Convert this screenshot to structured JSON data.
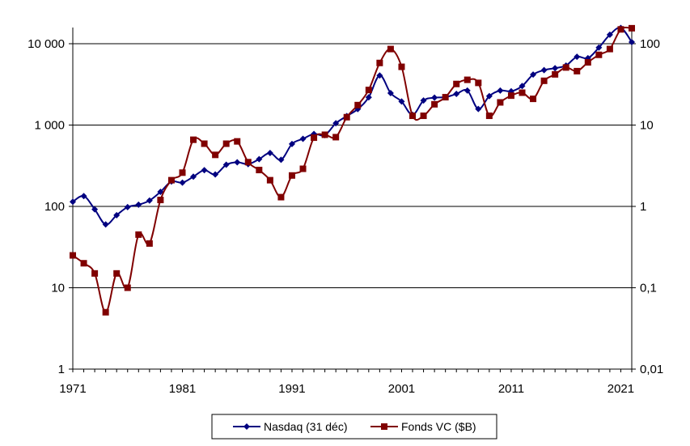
{
  "chart_data": {
    "type": "line",
    "title": "",
    "xlabel": "",
    "ylabel": "",
    "y2label": "",
    "x_tick_labels": [
      "1971",
      "1981",
      "1991",
      "2001",
      "2011",
      "2021"
    ],
    "x_range": [
      1971,
      2022
    ],
    "y_left": {
      "scale": "log",
      "range": [
        1,
        10000
      ],
      "tick_labels": [
        "1",
        "10",
        "100",
        "1 000",
        "10 000"
      ]
    },
    "y_right": {
      "scale": "log",
      "range": [
        0.01,
        100
      ],
      "tick_labels": [
        "0,01",
        "0,1",
        "1",
        "10",
        "100"
      ]
    },
    "grid": "horizontal major gridlines",
    "legend_position": "bottom",
    "series": [
      {
        "name": "Nasdaq (31 déc)",
        "axis": "left",
        "color": "#000080",
        "marker": "diamond",
        "x": [
          1971,
          1972,
          1973,
          1974,
          1975,
          1976,
          1977,
          1978,
          1979,
          1980,
          1981,
          1982,
          1983,
          1984,
          1985,
          1986,
          1987,
          1988,
          1989,
          1990,
          1991,
          1992,
          1993,
          1994,
          1995,
          1996,
          1997,
          1998,
          1999,
          2000,
          2001,
          2002,
          2003,
          2004,
          2005,
          2006,
          2007,
          2008,
          2009,
          2010,
          2011,
          2012,
          2013,
          2014,
          2015,
          2016,
          2017,
          2018,
          2019,
          2020,
          2021,
          2022
        ],
        "values": [
          114,
          134,
          92,
          60,
          78,
          98,
          105,
          118,
          151,
          202,
          196,
          232,
          279,
          247,
          325,
          349,
          331,
          381,
          454,
          374,
          586,
          677,
          777,
          752,
          1052,
          1291,
          1570,
          2193,
          4069,
          2471,
          1950,
          1336,
          2003,
          2175,
          2205,
          2415,
          2652,
          1577,
          2269,
          2653,
          2605,
          3020,
          4177,
          4736,
          5007,
          5383,
          6903,
          6635,
          8973,
          12888,
          15645,
          10466
        ]
      },
      {
        "name": "Fonds VC ($B)",
        "axis": "right",
        "color": "#800000",
        "marker": "square",
        "x": [
          1971,
          1972,
          1973,
          1974,
          1975,
          1976,
          1977,
          1978,
          1979,
          1980,
          1981,
          1982,
          1983,
          1984,
          1985,
          1986,
          1987,
          1988,
          1989,
          1990,
          1991,
          1992,
          1993,
          1994,
          1995,
          1996,
          1997,
          1998,
          1999,
          2000,
          2001,
          2002,
          2003,
          2004,
          2005,
          2006,
          2007,
          2008,
          2009,
          2010,
          2011,
          2012,
          2013,
          2014,
          2015,
          2016,
          2017,
          2018,
          2019,
          2020,
          2021,
          2022
        ],
        "values": [
          0.25,
          0.2,
          0.15,
          0.05,
          0.15,
          0.1,
          0.45,
          0.35,
          1.2,
          2.1,
          2.6,
          6.6,
          5.9,
          4.3,
          5.9,
          6.3,
          3.5,
          2.8,
          2.1,
          1.3,
          2.4,
          2.9,
          7,
          7.6,
          7.1,
          12.5,
          17.6,
          27,
          58,
          86,
          52,
          13,
          13,
          18,
          22,
          32,
          36,
          33,
          13,
          19,
          23,
          25,
          21,
          35,
          42,
          51,
          46,
          59,
          73,
          86,
          150,
          155
        ]
      }
    ]
  }
}
